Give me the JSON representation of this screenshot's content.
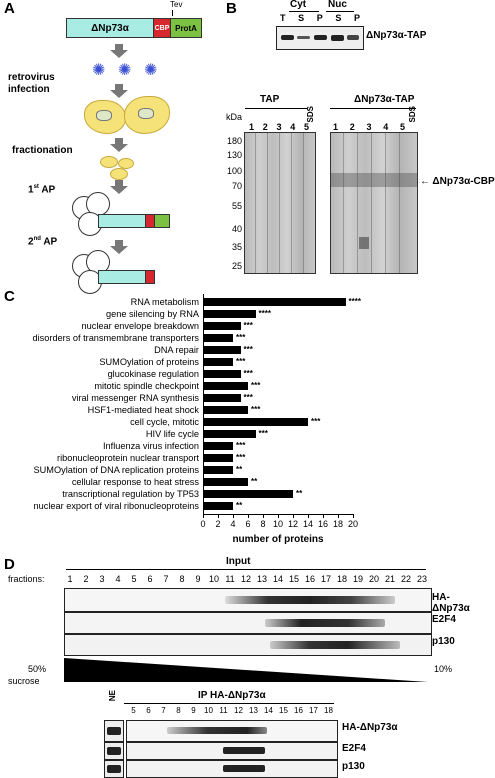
{
  "panelA": {
    "label": "A",
    "construct": {
      "dnp": "ΔNp73α",
      "cbp": "CBP",
      "prota": "ProtA",
      "tev": "Tev"
    },
    "steps": [
      "retrovirus infection",
      "fractionation",
      "1st AP",
      "2nd AP"
    ],
    "step_ap1_prefix": "1",
    "step_ap1_sup": "st",
    "step_ap1_suffix": " AP",
    "step_ap2_prefix": "2",
    "step_ap2_sup": "nd",
    "step_ap2_suffix": " AP"
  },
  "panelB": {
    "label": "B",
    "top_blot": {
      "groups": [
        "Cyt",
        "Nuc"
      ],
      "lanes": [
        "T",
        "S",
        "P",
        "S",
        "P"
      ],
      "protein": "ΔNp73α-TAP"
    },
    "gel": {
      "kda_label": "kDa",
      "markers": [
        "180",
        "130",
        "100",
        "70",
        "55",
        "40",
        "35",
        "25"
      ],
      "groups": [
        "TAP",
        "ΔNp73α-TAP"
      ],
      "lanes": [
        "1",
        "2",
        "3",
        "4",
        "5",
        "SDS"
      ],
      "arrow_label": "ΔNp73α-CBP"
    }
  },
  "panelC": {
    "label": "C",
    "chart_data": {
      "type": "bar",
      "orientation": "horizontal",
      "categories": [
        "RNA metabolism",
        "gene silencing by RNA",
        "nuclear envelope breakdown",
        "disorders of transmembrane transporters",
        "DNA repair",
        "SUMOylation of proteins",
        "glucokinase regulation",
        "mitotic spindle checkpoint",
        "viral messenger RNA synthesis",
        "HSF1-mediated heat shock",
        "cell cycle, mitotic",
        "HIV life cycle",
        "Influenza virus infection",
        "ribonucleoprotein nuclear transport",
        "SUMOylation of DNA replication proteins",
        "cellular response to heat stress",
        "transcriptional regulation by TP53",
        "nuclear export of viral ribonucleoproteins"
      ],
      "values": [
        19,
        7,
        5,
        4,
        5,
        4,
        5,
        6,
        5,
        6,
        14,
        7,
        4,
        4,
        4,
        6,
        12,
        4
      ],
      "significance": [
        "****",
        "****",
        "***",
        "***",
        "***",
        "***",
        "***",
        "***",
        "***",
        "***",
        "***",
        "***",
        "***",
        "***",
        "**",
        "**",
        "**",
        "**"
      ],
      "xlabel": "number of proteins",
      "ticks": [
        "0",
        "2",
        "4",
        "6",
        "8",
        "10",
        "12",
        "14",
        "16",
        "18",
        "20"
      ],
      "xlim": [
        0,
        20
      ]
    }
  },
  "panelD": {
    "label": "D",
    "input_title": "Input",
    "fractions_label": "fractions:",
    "fractions": [
      "1",
      "2",
      "3",
      "4",
      "5",
      "6",
      "7",
      "8",
      "9",
      "10",
      "11",
      "12",
      "13",
      "14",
      "15",
      "16",
      "17",
      "18",
      "19",
      "20",
      "21",
      "22",
      "23"
    ],
    "rows": [
      "HA-ΔNp73α",
      "E2F4",
      "p130"
    ],
    "sucrose_left": "50%",
    "sucrose_unit": "sucrose",
    "sucrose_right": "10%",
    "ip_title": "IP HA-ΔNp73α",
    "ne_label": "NE",
    "ip_fractions": [
      "5",
      "6",
      "7",
      "8",
      "9",
      "10",
      "11",
      "12",
      "13",
      "14",
      "15",
      "16",
      "17",
      "18"
    ],
    "ip_rows": [
      "HA-ΔNp73α",
      "E2F4",
      "p130"
    ]
  }
}
